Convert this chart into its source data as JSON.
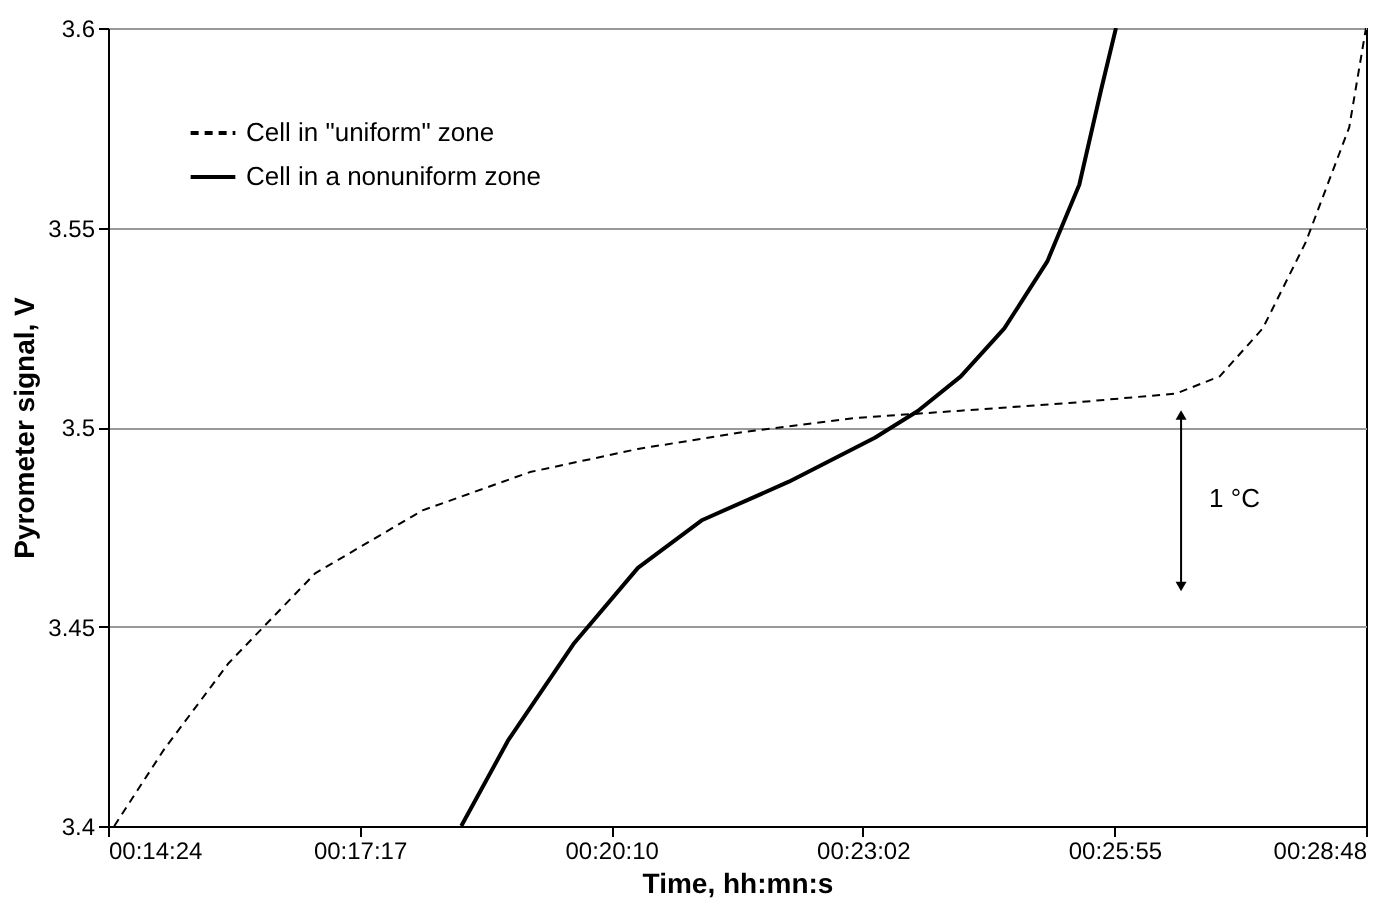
{
  "chart_data": {
    "type": "line",
    "xlabel": "Time, hh:mn:s",
    "ylabel": "Pyrometer signal, V",
    "xlim": [
      0.24,
      0.48
    ],
    "ylim": [
      3.4,
      3.6
    ],
    "xticks": [
      {
        "value": 0.24,
        "label": "00:14:24"
      },
      {
        "value": 0.288,
        "label": "00:17:17"
      },
      {
        "value": 0.336,
        "label": "00:20:10"
      },
      {
        "value": 0.384,
        "label": "00:23:02"
      },
      {
        "value": 0.432,
        "label": "00:25:55"
      },
      {
        "value": 0.48,
        "label": "00:28:48"
      }
    ],
    "yticks": [
      {
        "value": 3.4,
        "label": "3.4"
      },
      3.45,
      {
        "value": 3.5,
        "label": "3.5"
      },
      3.55,
      {
        "value": 3.6,
        "label": "3.6"
      }
    ],
    "grid": "y",
    "legend": "top left",
    "annotations": [
      "1 °C"
    ],
    "series": [
      {
        "name": "Cell in \"uniform\" zone",
        "color": "#000000",
        "line_style": "dashed",
        "x": [
          0.2412,
          0.2507,
          0.263,
          0.2795,
          0.3,
          0.3205,
          0.3411,
          0.3616,
          0.3822,
          0.4027,
          0.4233,
          0.4438,
          0.4521,
          0.4603,
          0.4685,
          0.4768,
          0.48
        ],
        "values": [
          3.4,
          3.4192,
          3.4408,
          3.4633,
          3.4791,
          3.4887,
          3.4945,
          3.4988,
          3.5022,
          3.5041,
          3.506,
          3.5084,
          3.5127,
          3.5247,
          3.5463,
          3.5751,
          3.6
        ]
      },
      {
        "name": "Cell in a nonuniform zone",
        "color": "#000000",
        "line_style": "solid",
        "x": [
          0.3074,
          0.3164,
          0.3288,
          0.3411,
          0.3534,
          0.3699,
          0.3863,
          0.3945,
          0.4027,
          0.411,
          0.4192,
          0.4253,
          0.4295,
          0.4323
        ],
        "values": [
          3.4,
          3.4216,
          3.4456,
          3.4647,
          3.4767,
          3.4863,
          3.4973,
          3.504,
          3.5127,
          3.5247,
          3.5415,
          3.5607,
          3.5847,
          3.6
        ]
      }
    ]
  }
}
